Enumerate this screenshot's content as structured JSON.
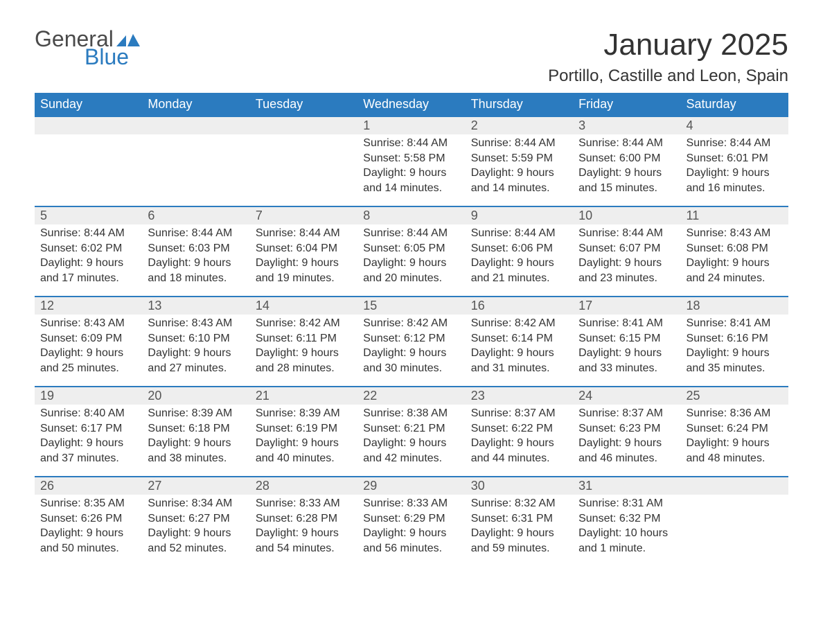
{
  "brand": {
    "line1": "General",
    "line2": "Blue"
  },
  "title": "January 2025",
  "location": "Portillo, Castille and Leon, Spain",
  "colors": {
    "header_bg": "#2b7bbf",
    "header_text": "#ffffff",
    "daynum_bg": "#eeeeee",
    "text": "#333333",
    "week_border": "#2b7bbf"
  },
  "typography": {
    "title_fontsize": 44,
    "location_fontsize": 24,
    "header_fontsize": 18,
    "daynum_fontsize": 18,
    "body_fontsize": 16
  },
  "days_of_week": [
    "Sunday",
    "Monday",
    "Tuesday",
    "Wednesday",
    "Thursday",
    "Friday",
    "Saturday"
  ],
  "weeks": [
    [
      null,
      null,
      null,
      {
        "n": "1",
        "sr": "Sunrise: 8:44 AM",
        "ss": "Sunset: 5:58 PM",
        "d1": "Daylight: 9 hours",
        "d2": "and 14 minutes."
      },
      {
        "n": "2",
        "sr": "Sunrise: 8:44 AM",
        "ss": "Sunset: 5:59 PM",
        "d1": "Daylight: 9 hours",
        "d2": "and 14 minutes."
      },
      {
        "n": "3",
        "sr": "Sunrise: 8:44 AM",
        "ss": "Sunset: 6:00 PM",
        "d1": "Daylight: 9 hours",
        "d2": "and 15 minutes."
      },
      {
        "n": "4",
        "sr": "Sunrise: 8:44 AM",
        "ss": "Sunset: 6:01 PM",
        "d1": "Daylight: 9 hours",
        "d2": "and 16 minutes."
      }
    ],
    [
      {
        "n": "5",
        "sr": "Sunrise: 8:44 AM",
        "ss": "Sunset: 6:02 PM",
        "d1": "Daylight: 9 hours",
        "d2": "and 17 minutes."
      },
      {
        "n": "6",
        "sr": "Sunrise: 8:44 AM",
        "ss": "Sunset: 6:03 PM",
        "d1": "Daylight: 9 hours",
        "d2": "and 18 minutes."
      },
      {
        "n": "7",
        "sr": "Sunrise: 8:44 AM",
        "ss": "Sunset: 6:04 PM",
        "d1": "Daylight: 9 hours",
        "d2": "and 19 minutes."
      },
      {
        "n": "8",
        "sr": "Sunrise: 8:44 AM",
        "ss": "Sunset: 6:05 PM",
        "d1": "Daylight: 9 hours",
        "d2": "and 20 minutes."
      },
      {
        "n": "9",
        "sr": "Sunrise: 8:44 AM",
        "ss": "Sunset: 6:06 PM",
        "d1": "Daylight: 9 hours",
        "d2": "and 21 minutes."
      },
      {
        "n": "10",
        "sr": "Sunrise: 8:44 AM",
        "ss": "Sunset: 6:07 PM",
        "d1": "Daylight: 9 hours",
        "d2": "and 23 minutes."
      },
      {
        "n": "11",
        "sr": "Sunrise: 8:43 AM",
        "ss": "Sunset: 6:08 PM",
        "d1": "Daylight: 9 hours",
        "d2": "and 24 minutes."
      }
    ],
    [
      {
        "n": "12",
        "sr": "Sunrise: 8:43 AM",
        "ss": "Sunset: 6:09 PM",
        "d1": "Daylight: 9 hours",
        "d2": "and 25 minutes."
      },
      {
        "n": "13",
        "sr": "Sunrise: 8:43 AM",
        "ss": "Sunset: 6:10 PM",
        "d1": "Daylight: 9 hours",
        "d2": "and 27 minutes."
      },
      {
        "n": "14",
        "sr": "Sunrise: 8:42 AM",
        "ss": "Sunset: 6:11 PM",
        "d1": "Daylight: 9 hours",
        "d2": "and 28 minutes."
      },
      {
        "n": "15",
        "sr": "Sunrise: 8:42 AM",
        "ss": "Sunset: 6:12 PM",
        "d1": "Daylight: 9 hours",
        "d2": "and 30 minutes."
      },
      {
        "n": "16",
        "sr": "Sunrise: 8:42 AM",
        "ss": "Sunset: 6:14 PM",
        "d1": "Daylight: 9 hours",
        "d2": "and 31 minutes."
      },
      {
        "n": "17",
        "sr": "Sunrise: 8:41 AM",
        "ss": "Sunset: 6:15 PM",
        "d1": "Daylight: 9 hours",
        "d2": "and 33 minutes."
      },
      {
        "n": "18",
        "sr": "Sunrise: 8:41 AM",
        "ss": "Sunset: 6:16 PM",
        "d1": "Daylight: 9 hours",
        "d2": "and 35 minutes."
      }
    ],
    [
      {
        "n": "19",
        "sr": "Sunrise: 8:40 AM",
        "ss": "Sunset: 6:17 PM",
        "d1": "Daylight: 9 hours",
        "d2": "and 37 minutes."
      },
      {
        "n": "20",
        "sr": "Sunrise: 8:39 AM",
        "ss": "Sunset: 6:18 PM",
        "d1": "Daylight: 9 hours",
        "d2": "and 38 minutes."
      },
      {
        "n": "21",
        "sr": "Sunrise: 8:39 AM",
        "ss": "Sunset: 6:19 PM",
        "d1": "Daylight: 9 hours",
        "d2": "and 40 minutes."
      },
      {
        "n": "22",
        "sr": "Sunrise: 8:38 AM",
        "ss": "Sunset: 6:21 PM",
        "d1": "Daylight: 9 hours",
        "d2": "and 42 minutes."
      },
      {
        "n": "23",
        "sr": "Sunrise: 8:37 AM",
        "ss": "Sunset: 6:22 PM",
        "d1": "Daylight: 9 hours",
        "d2": "and 44 minutes."
      },
      {
        "n": "24",
        "sr": "Sunrise: 8:37 AM",
        "ss": "Sunset: 6:23 PM",
        "d1": "Daylight: 9 hours",
        "d2": "and 46 minutes."
      },
      {
        "n": "25",
        "sr": "Sunrise: 8:36 AM",
        "ss": "Sunset: 6:24 PM",
        "d1": "Daylight: 9 hours",
        "d2": "and 48 minutes."
      }
    ],
    [
      {
        "n": "26",
        "sr": "Sunrise: 8:35 AM",
        "ss": "Sunset: 6:26 PM",
        "d1": "Daylight: 9 hours",
        "d2": "and 50 minutes."
      },
      {
        "n": "27",
        "sr": "Sunrise: 8:34 AM",
        "ss": "Sunset: 6:27 PM",
        "d1": "Daylight: 9 hours",
        "d2": "and 52 minutes."
      },
      {
        "n": "28",
        "sr": "Sunrise: 8:33 AM",
        "ss": "Sunset: 6:28 PM",
        "d1": "Daylight: 9 hours",
        "d2": "and 54 minutes."
      },
      {
        "n": "29",
        "sr": "Sunrise: 8:33 AM",
        "ss": "Sunset: 6:29 PM",
        "d1": "Daylight: 9 hours",
        "d2": "and 56 minutes."
      },
      {
        "n": "30",
        "sr": "Sunrise: 8:32 AM",
        "ss": "Sunset: 6:31 PM",
        "d1": "Daylight: 9 hours",
        "d2": "and 59 minutes."
      },
      {
        "n": "31",
        "sr": "Sunrise: 8:31 AM",
        "ss": "Sunset: 6:32 PM",
        "d1": "Daylight: 10 hours",
        "d2": "and 1 minute."
      },
      null
    ]
  ]
}
